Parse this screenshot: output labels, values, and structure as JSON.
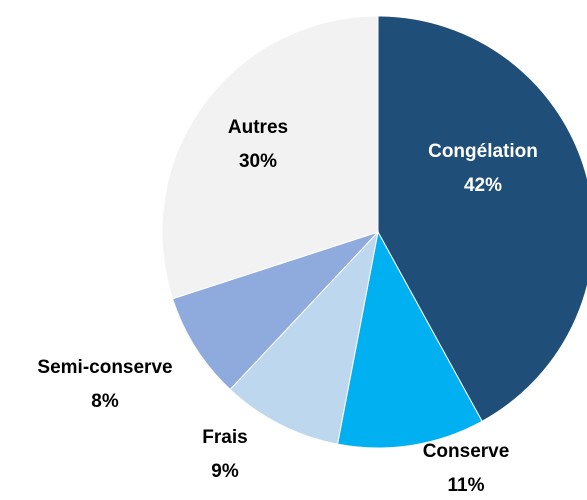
{
  "chart_data": {
    "type": "pie",
    "categories": [
      "Congélation",
      "Conserve",
      "Frais",
      "Semi-conserve",
      "Autres"
    ],
    "values": [
      42,
      11,
      9,
      8,
      30
    ],
    "value_labels": [
      "42%",
      "11%",
      "9%",
      "8%",
      "30%"
    ],
    "colors": [
      "#1f4e79",
      "#00b0f0",
      "#bdd7ee",
      "#8faadc",
      "#f2f2f2"
    ]
  }
}
